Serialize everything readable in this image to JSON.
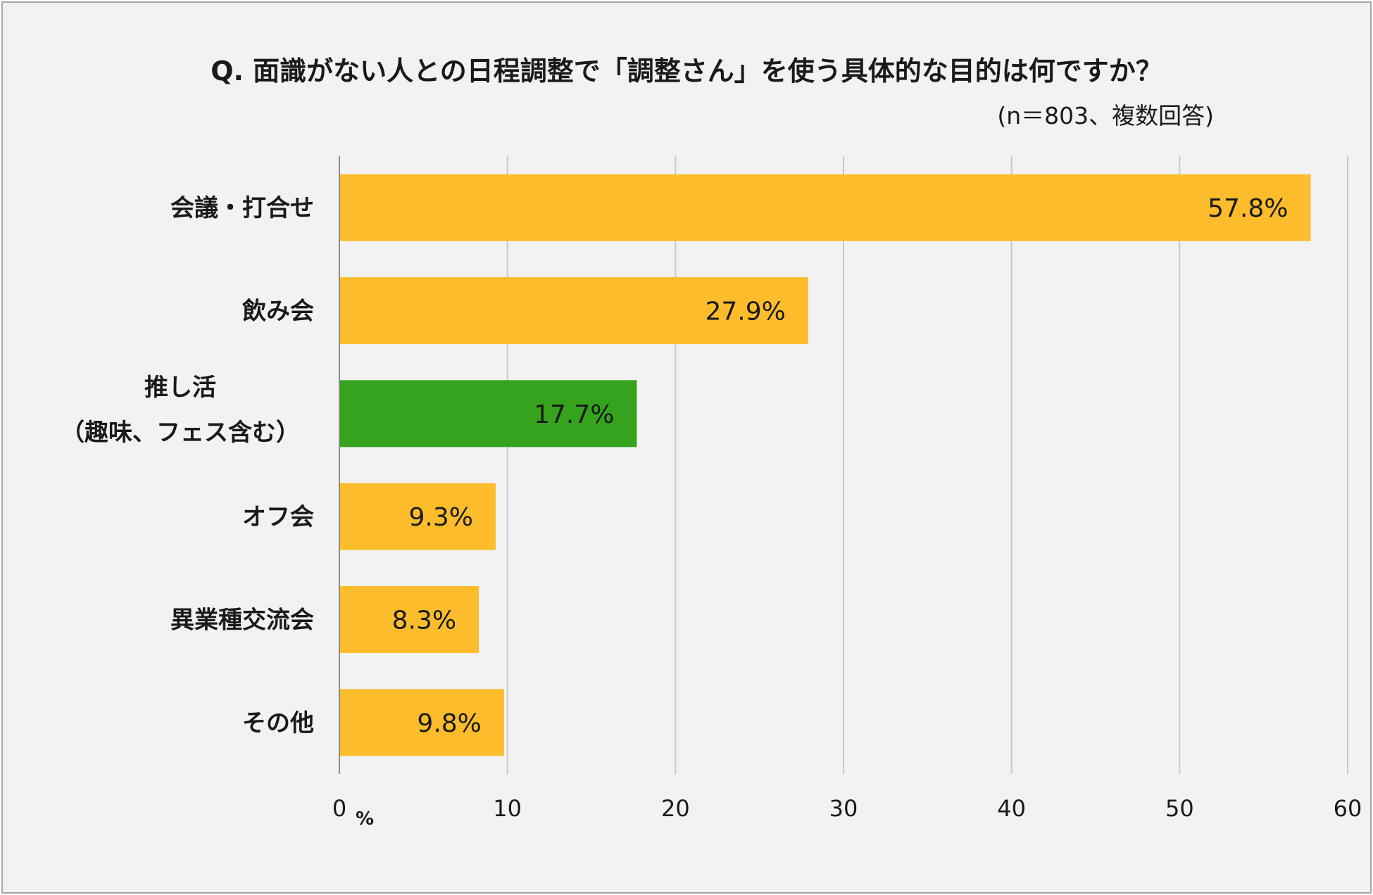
{
  "chart_data": {
    "type": "bar",
    "orientation": "horizontal",
    "title": "Q.  面識がない人との日程調整で「調整さん」を使う具体的な目的は何ですか？",
    "subtitle": "(n＝803、複数回答)",
    "categories": [
      [
        "会議・打合せ"
      ],
      [
        "飲み会"
      ],
      [
        "推し活",
        "（趣味、フェス含む）"
      ],
      [
        "オフ会"
      ],
      [
        "異業種交流会"
      ],
      [
        "その他"
      ]
    ],
    "values": [
      57.8,
      27.9,
      17.7,
      9.3,
      8.3,
      9.8
    ],
    "value_labels": [
      "57.8%",
      "27.9%",
      "17.7%",
      "9.3%",
      "8.3%",
      "9.8%"
    ],
    "highlight_index": 2,
    "colors": {
      "bar": "#fcbc2c",
      "highlight": "#35a31d",
      "grid": "#c8c8c8",
      "axis": "#8c8c8c"
    },
    "xlim": [
      0,
      60
    ],
    "xticks": [
      0,
      10,
      20,
      30,
      40,
      50,
      60
    ],
    "xunit": "%",
    "grid": true,
    "legend": "none"
  }
}
